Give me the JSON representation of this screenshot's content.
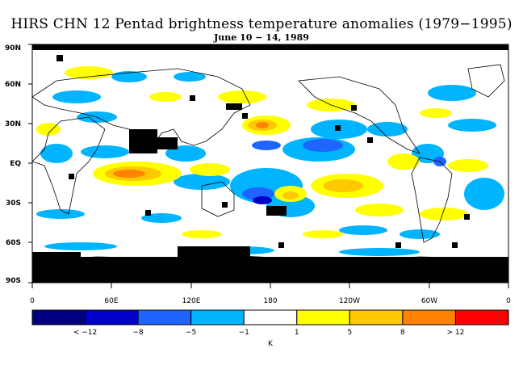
{
  "title": "HIRS CHN 12 Pentad brightness temperature anomalies (1979−1995)",
  "subtitle": "June 10 − 14, 1989",
  "lat_labels": [
    "90N",
    "60N",
    "30N",
    "EQ",
    "30S",
    "60S",
    "90S"
  ],
  "lon_labels": [
    "0",
    "60E",
    "120E",
    "180",
    "120W",
    "60W",
    "0"
  ],
  "colorbar": {
    "colors": [
      "#000080",
      "#0000c8",
      "#1e64ff",
      "#00b4ff",
      "#ffffff",
      "#ffff00",
      "#ffc800",
      "#ff8200",
      "#ff0000"
    ],
    "tick_labels": [
      "< −12",
      "−8",
      "−5",
      "−1",
      "1",
      "5",
      "8",
      "> 12"
    ],
    "unit_label": "K"
  },
  "colors": {
    "missing": "#000000",
    "coastline": "#000000"
  }
}
